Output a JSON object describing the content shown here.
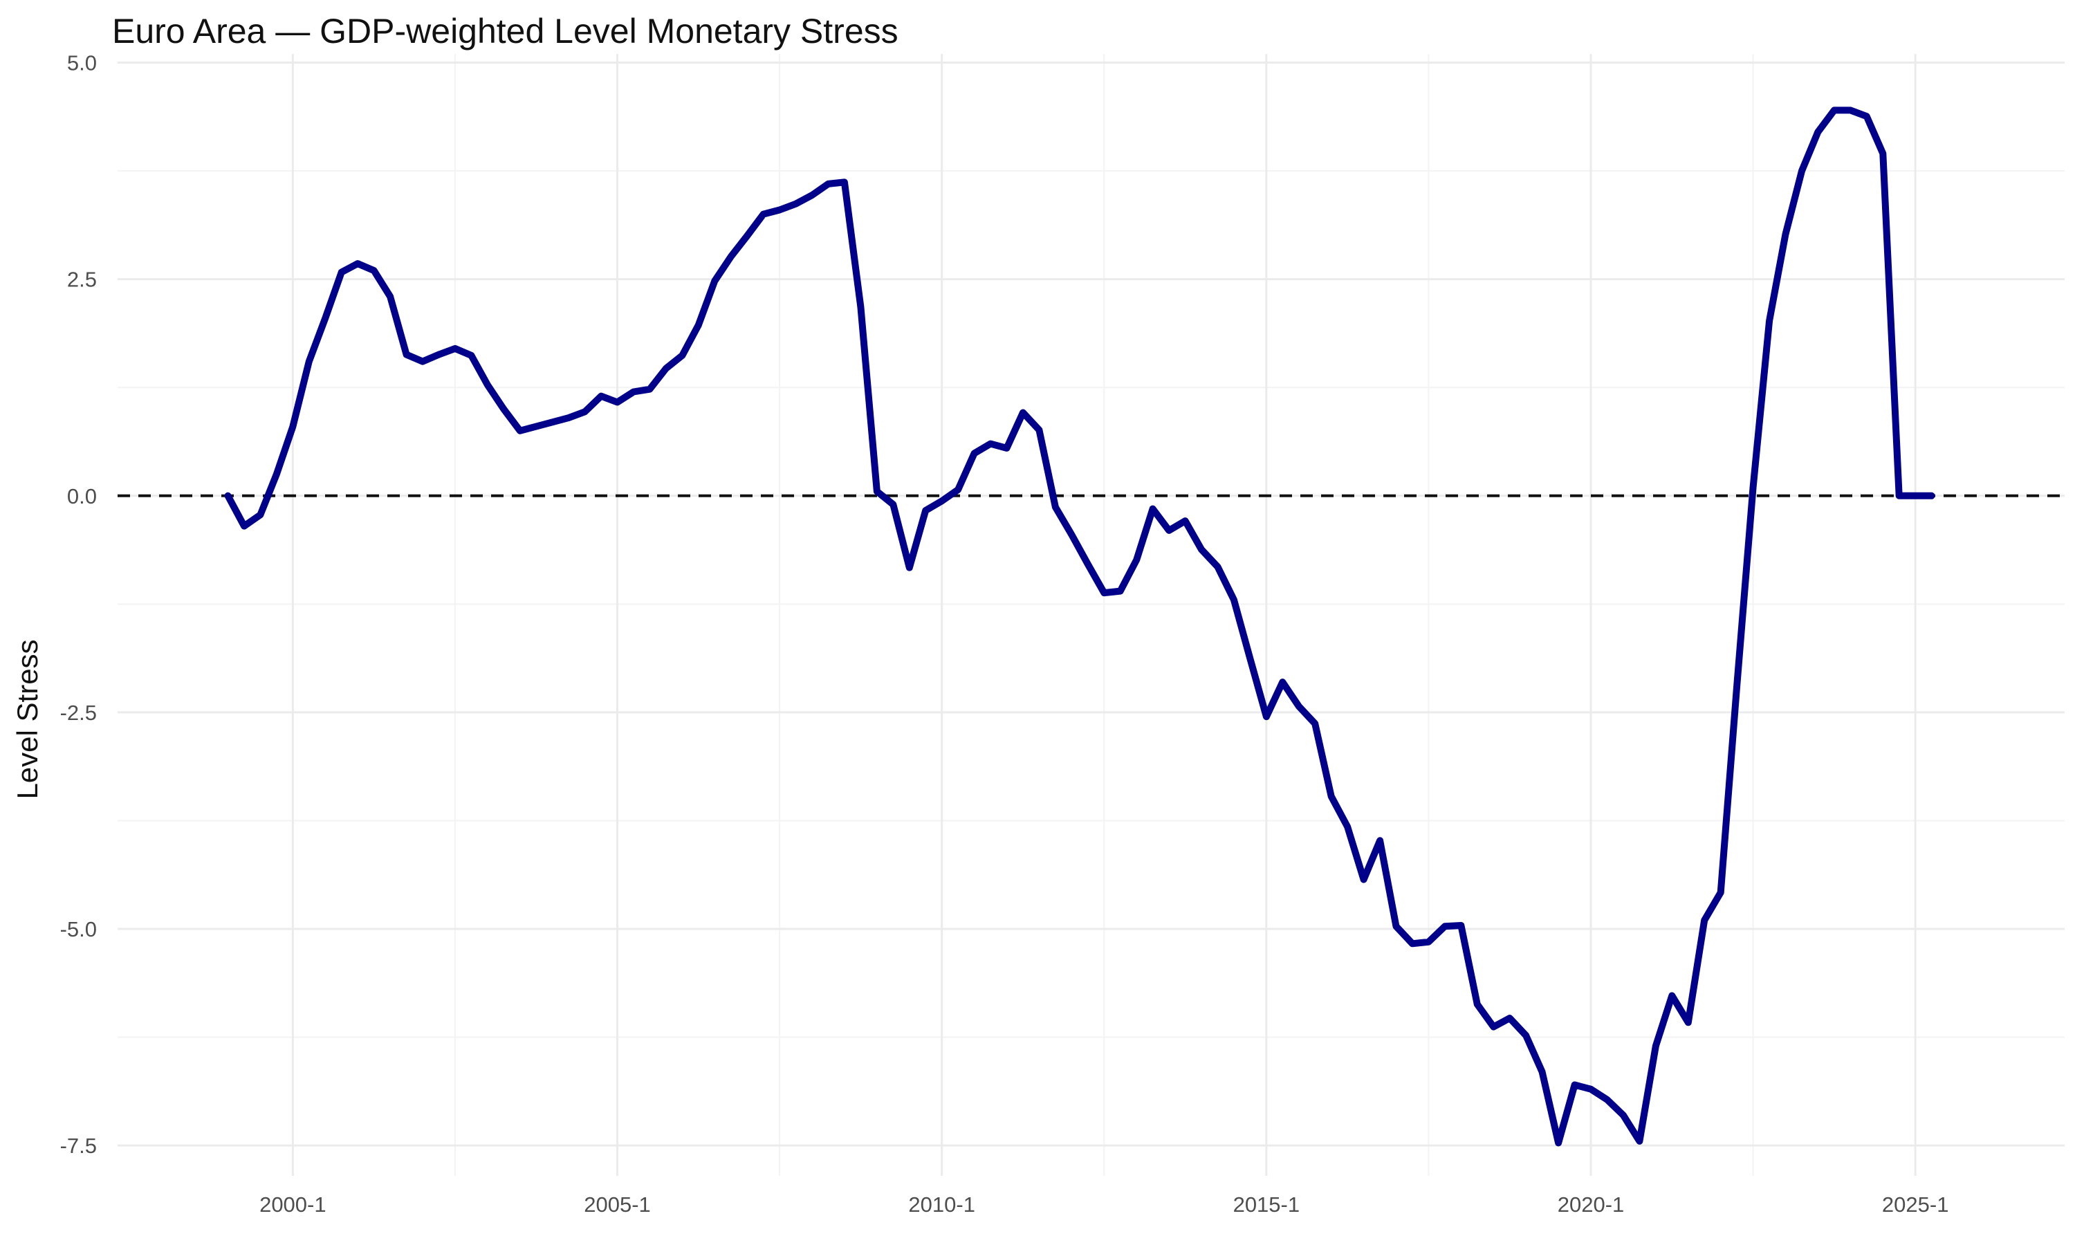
{
  "chart_data": {
    "type": "line",
    "title": "Euro Area — GDP-weighted Level Monetary Stress",
    "xlabel": "",
    "ylabel": "Level Stress",
    "xlim": [
      1997.3,
      2027.3
    ],
    "ylim": [
      -7.85,
      5.1
    ],
    "x_ticks": [
      {
        "value": 2000,
        "label": "2000-1"
      },
      {
        "value": 2005,
        "label": "2005-1"
      },
      {
        "value": 2010,
        "label": "2010-1"
      },
      {
        "value": 2015,
        "label": "2015-1"
      },
      {
        "value": 2020,
        "label": "2020-1"
      },
      {
        "value": 2025,
        "label": "2025-1"
      }
    ],
    "y_ticks": [
      {
        "value": 5,
        "label": "5.0"
      },
      {
        "value": 2.5,
        "label": "2.5"
      },
      {
        "value": 0,
        "label": "0.0"
      },
      {
        "value": -2.5,
        "label": "-2.5"
      },
      {
        "value": -5,
        "label": "-5.0"
      },
      {
        "value": -7.5,
        "label": "-7.5"
      }
    ],
    "grid": true,
    "reference_line": {
      "y": 0,
      "style": "dashed",
      "color": "#000000"
    },
    "series": [
      {
        "color": "#00008B",
        "x": [
          1999.0,
          1999.25,
          1999.5,
          1999.75,
          2000.0,
          2000.25,
          2000.5,
          2000.75,
          2001.0,
          2001.25,
          2001.5,
          2001.75,
          2002.0,
          2002.25,
          2002.5,
          2002.75,
          2003.0,
          2003.25,
          2003.5,
          2003.75,
          2004.0,
          2004.25,
          2004.5,
          2004.75,
          2005.0,
          2005.25,
          2005.5,
          2005.75,
          2006.0,
          2006.25,
          2006.5,
          2006.75,
          2007.0,
          2007.25,
          2007.5,
          2007.75,
          2008.0,
          2008.25,
          2008.5,
          2008.75,
          2009.0,
          2009.25,
          2009.5,
          2009.75,
          2010.0,
          2010.25,
          2010.5,
          2010.75,
          2011.0,
          2011.25,
          2011.5,
          2011.75,
          2012.0,
          2012.25,
          2012.5,
          2012.75,
          2013.0,
          2013.25,
          2013.5,
          2013.75,
          2014.0,
          2014.25,
          2014.5,
          2014.75,
          2015.0,
          2015.25,
          2015.5,
          2015.75,
          2016.0,
          2016.25,
          2016.5,
          2016.75,
          2017.0,
          2017.25,
          2017.5,
          2017.75,
          2018.0,
          2018.25,
          2018.5,
          2018.75,
          2019.0,
          2019.25,
          2019.5,
          2019.75,
          2020.0,
          2020.25,
          2020.5,
          2020.75,
          2021.0,
          2021.25,
          2021.5,
          2021.75,
          2022.0,
          2022.25,
          2022.5,
          2022.75,
          2023.0,
          2023.25,
          2023.5,
          2023.75,
          2024.0,
          2024.25,
          2024.5,
          2024.75,
          2025.0,
          2025.25
        ],
        "y": [
          0.0,
          -0.35,
          -0.22,
          0.25,
          0.8,
          1.55,
          2.05,
          2.58,
          2.68,
          2.6,
          2.3,
          1.63,
          1.55,
          1.63,
          1.7,
          1.62,
          1.28,
          1.0,
          0.75,
          0.8,
          0.85,
          0.9,
          0.97,
          1.15,
          1.08,
          1.2,
          1.23,
          1.47,
          1.62,
          1.97,
          2.48,
          2.76,
          3.0,
          3.25,
          3.3,
          3.37,
          3.47,
          3.6,
          3.62,
          2.18,
          0.05,
          -0.1,
          -0.83,
          -0.17,
          -0.06,
          0.07,
          0.49,
          0.6,
          0.55,
          0.96,
          0.76,
          -0.13,
          -0.45,
          -0.79,
          -1.12,
          -1.1,
          -0.74,
          -0.15,
          -0.4,
          -0.29,
          -0.62,
          -0.82,
          -1.2,
          -1.88,
          -2.55,
          -2.15,
          -2.43,
          -2.63,
          -3.47,
          -3.82,
          -4.43,
          -3.98,
          -4.97,
          -5.17,
          -5.15,
          -4.97,
          -4.96,
          -5.87,
          -6.13,
          -6.03,
          -6.23,
          -6.65,
          -7.47,
          -6.8,
          -6.85,
          -6.97,
          -7.15,
          -7.45,
          -6.35,
          -5.77,
          -6.08,
          -4.9,
          -4.58,
          -2.2,
          0.1,
          2.02,
          3.02,
          3.75,
          4.2,
          4.45,
          4.45,
          4.38,
          3.95,
          0.0,
          0.0,
          0.0
        ]
      }
    ]
  }
}
